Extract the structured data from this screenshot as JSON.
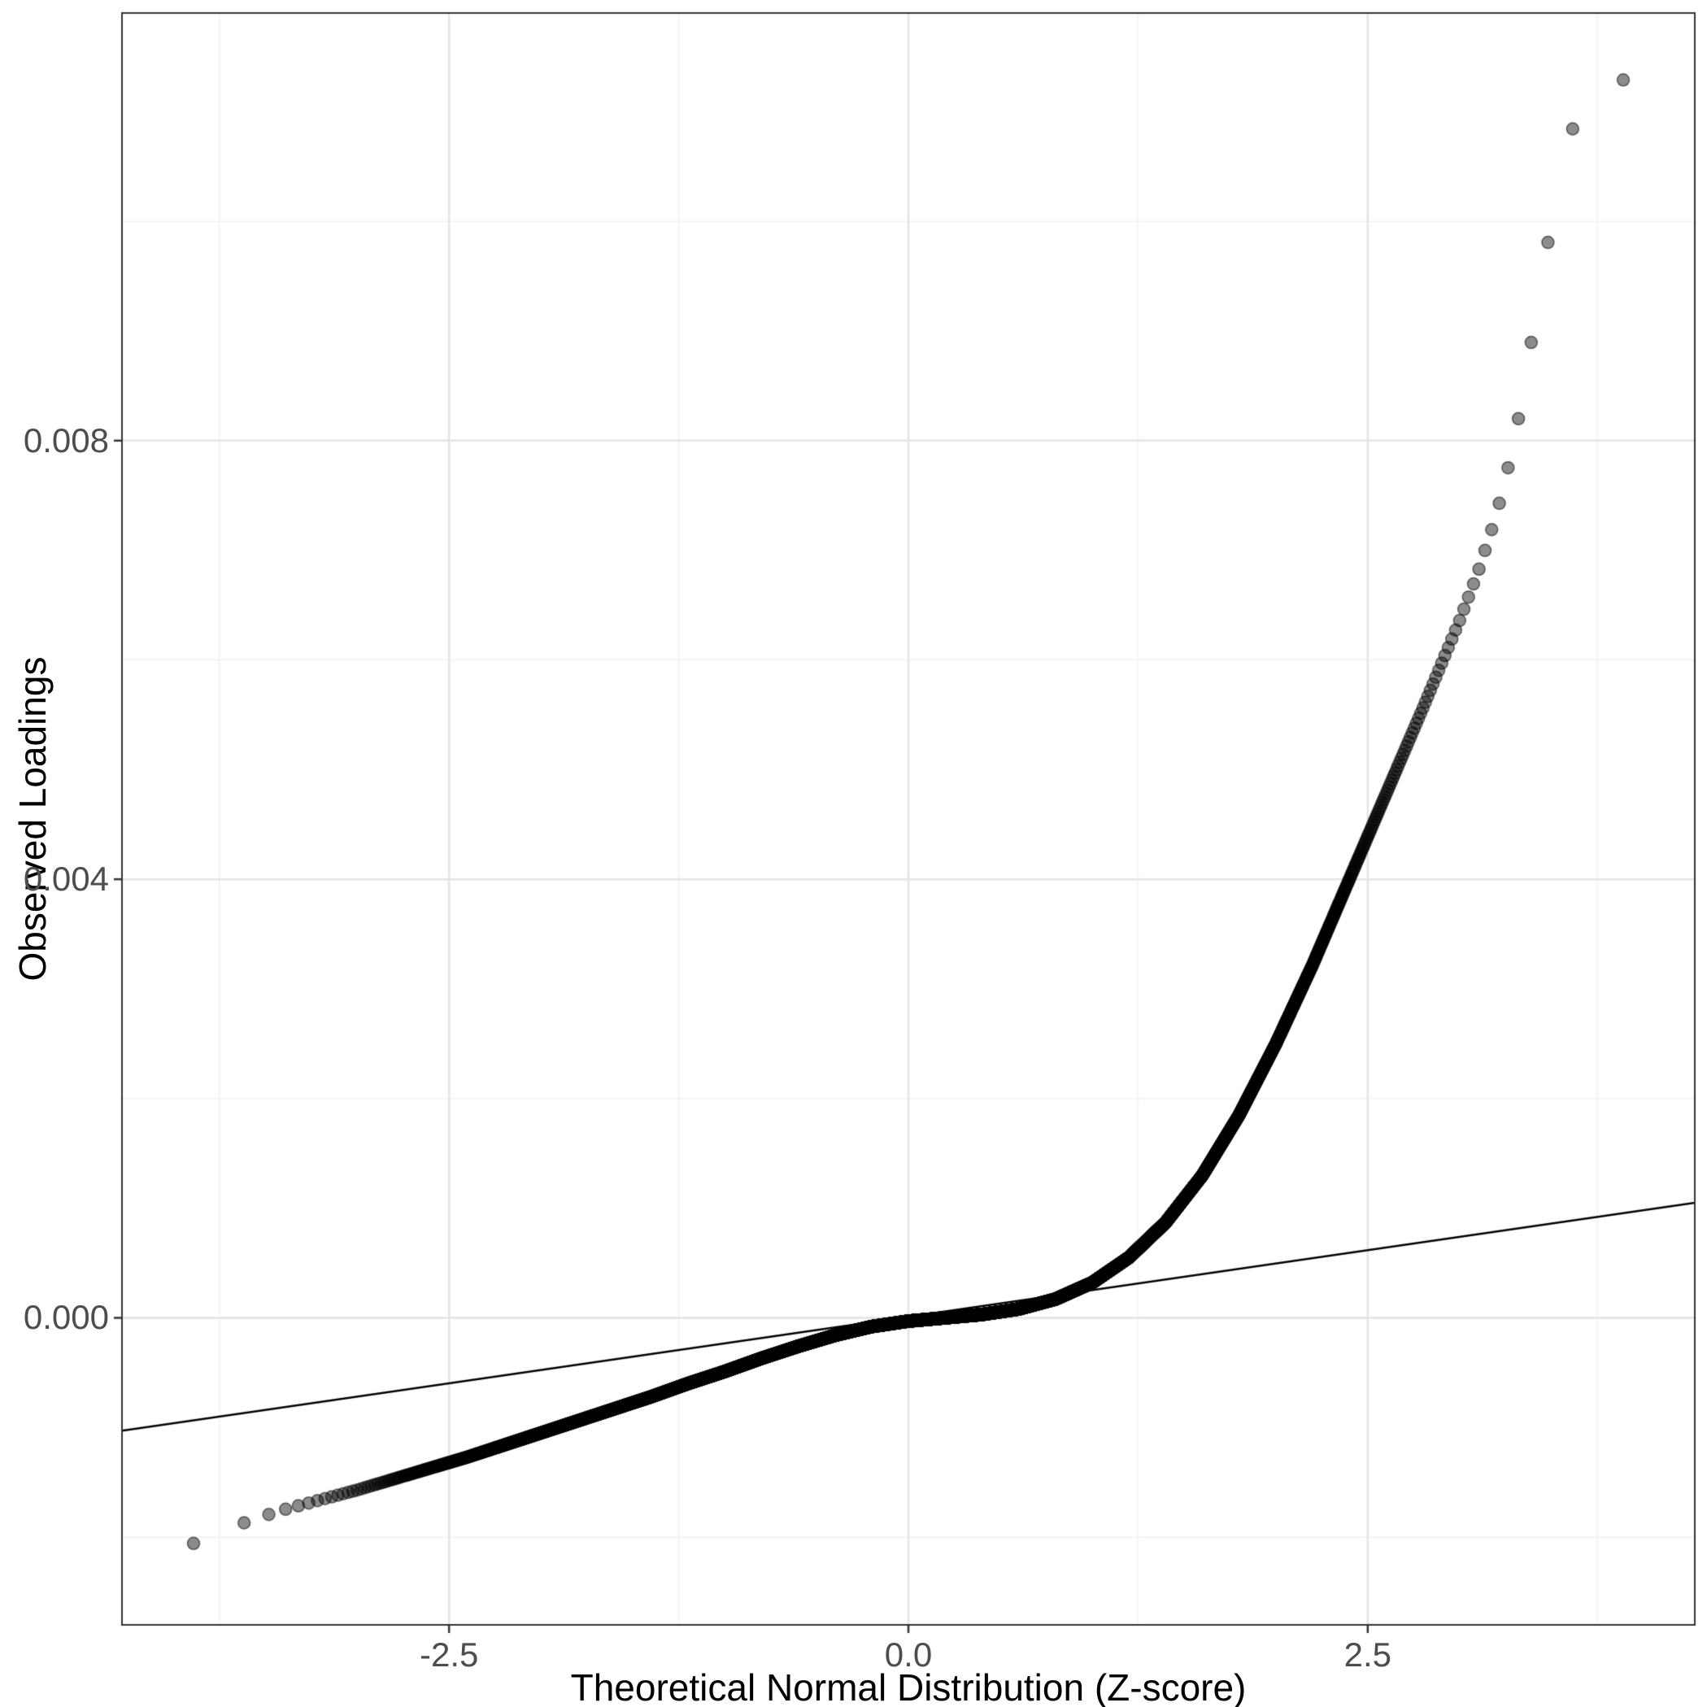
{
  "figure": {
    "background": "#FFFFFF",
    "panel_background": "#FFFFFF"
  },
  "chart_data": {
    "type": "scatter",
    "subtype": "qq-plot",
    "title": "",
    "xlabel": "Theoretical Normal Distribution (Z-score)",
    "ylabel": "Observed Loadings",
    "xlim": [
      -4.28,
      4.28
    ],
    "ylim": [
      -0.0028,
      0.0119
    ],
    "grid": true,
    "legend": "none",
    "x_ticks": {
      "values": [
        -2.5,
        0,
        2.5
      ],
      "labels": [
        "-2.5",
        "0.0",
        "2.5"
      ]
    },
    "y_ticks": {
      "values": [
        0,
        0.004,
        0.008
      ],
      "labels": [
        "0.000",
        "0.004",
        "0.008"
      ]
    },
    "x_minor_gridlines": [
      -3.75,
      -1.25,
      1.25,
      3.75
    ],
    "y_minor_gridlines": [
      -0.002,
      0.002,
      0.006,
      0.01
    ],
    "n_points": 10000,
    "quantile_curve": [
      [
        -3.95,
        -0.0021
      ],
      [
        -3.7,
        -0.00192
      ],
      [
        -3.55,
        -0.00183
      ],
      [
        -3.4,
        -0.00175
      ],
      [
        -3.2,
        -0.00166
      ],
      [
        -3.0,
        -0.00157
      ],
      [
        -2.8,
        -0.00147
      ],
      [
        -2.6,
        -0.00137
      ],
      [
        -2.4,
        -0.00127
      ],
      [
        -2.2,
        -0.00116
      ],
      [
        -2.0,
        -0.00105
      ],
      [
        -1.8,
        -0.00094
      ],
      [
        -1.6,
        -0.00083
      ],
      [
        -1.4,
        -0.00072
      ],
      [
        -1.2,
        -0.0006
      ],
      [
        -1.0,
        -0.00049
      ],
      [
        -0.8,
        -0.00037
      ],
      [
        -0.6,
        -0.00026
      ],
      [
        -0.4,
        -0.00016
      ],
      [
        -0.2,
        -8e-05
      ],
      [
        0.0,
        -3e-05
      ],
      [
        0.2,
        0.0
      ],
      [
        0.4,
        3e-05
      ],
      [
        0.6,
        8e-05
      ],
      [
        0.8,
        0.00017
      ],
      [
        1.0,
        0.00032
      ],
      [
        1.2,
        0.00055
      ],
      [
        1.4,
        0.00087
      ],
      [
        1.6,
        0.0013
      ],
      [
        1.8,
        0.00185
      ],
      [
        2.0,
        0.0025
      ],
      [
        2.2,
        0.00322
      ],
      [
        2.4,
        0.004
      ],
      [
        2.6,
        0.00478
      ],
      [
        2.8,
        0.00556
      ],
      [
        3.0,
        0.00636
      ],
      [
        3.1,
        0.0068
      ],
      [
        3.2,
        0.00732
      ],
      [
        3.3,
        0.008
      ],
      [
        3.4,
        0.009
      ],
      [
        3.5,
        0.01
      ],
      [
        3.6,
        0.0108
      ],
      [
        3.7,
        0.01108
      ],
      [
        3.9,
        0.0113
      ]
    ],
    "reference_line": {
      "slope": 0.000243,
      "intercept": 1e-05,
      "x1": -4.28,
      "y1": -0.00103,
      "x2": 4.28,
      "y2": 0.00105,
      "color": "#000000"
    },
    "style": {
      "point_fill": "rgba(0,0,0,0.45)",
      "point_stroke": "rgba(0,0,0,0.55)",
      "point_radius": 7.5,
      "line_color": "#000000",
      "line_width": 2.5,
      "grid_major_color": "#E4E4E4",
      "grid_minor_color": "#F2F2F2",
      "panel_border_color": "#333333",
      "tick_mark_color": "#333333",
      "tick_label_color": "#4D4D4D",
      "axis_title_color": "#000000"
    }
  }
}
